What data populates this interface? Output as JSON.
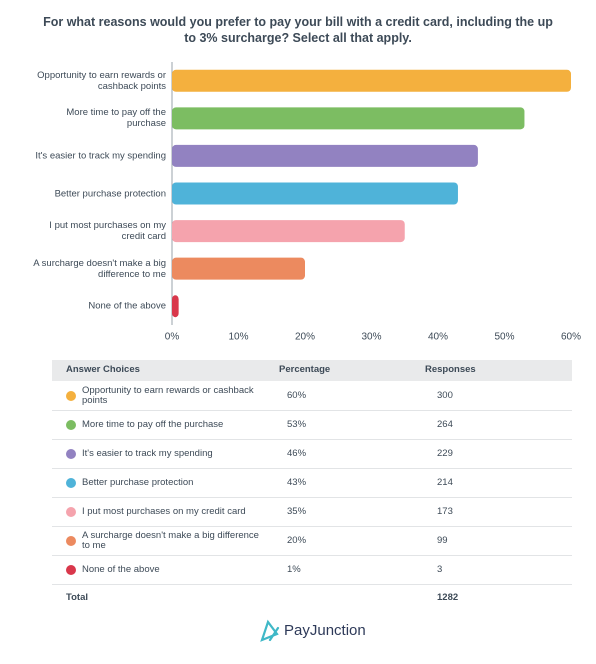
{
  "chart_data": {
    "type": "bar",
    "orientation": "horizontal",
    "title": "For what reasons would you prefer to pay your bill with a credit card, including the up to 3% surcharge? Select all that apply.",
    "categories": [
      "Opportunity to earn rewards or cashback points",
      "More time to pay off the purchase",
      "It's easier to track my spending",
      "Better purchase protection",
      "I put most purchases on my credit card",
      "A surcharge doesn't make a big difference to me",
      "None of the above"
    ],
    "values": [
      60,
      53,
      46,
      43,
      35,
      20,
      1
    ],
    "value_labels": [
      "60%",
      "53%",
      "46%",
      "43%",
      "35%",
      "20%",
      "1%"
    ],
    "colors": [
      "#f4b03e",
      "#7cbd62",
      "#9282c1",
      "#4fb3d9",
      "#f5a3ad",
      "#ec8a5f",
      "#d9374b"
    ],
    "xlim": [
      0,
      60
    ],
    "xticks": [
      {
        "value": 0,
        "label": "0%"
      },
      {
        "value": 10,
        "label": "10%"
      },
      {
        "value": 20,
        "label": "20%"
      },
      {
        "value": 30,
        "label": "30%"
      },
      {
        "value": 40,
        "label": "40%"
      },
      {
        "value": 50,
        "label": "50%"
      },
      {
        "value": 60,
        "label": "60%"
      }
    ]
  },
  "table": {
    "headers": [
      "Answer Choices",
      "Percentage",
      "Responses"
    ],
    "responses": [
      300,
      264,
      229,
      214,
      173,
      99,
      3
    ],
    "total_label": "Total",
    "total": 1282
  },
  "footer": {
    "brand": "PayJunction"
  }
}
